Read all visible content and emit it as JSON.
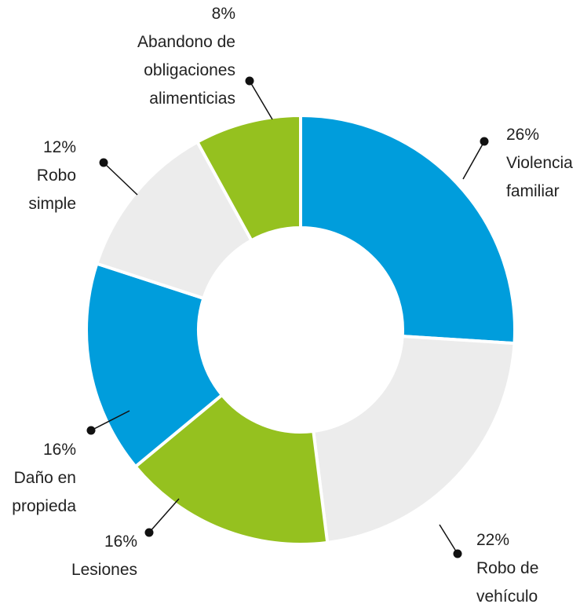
{
  "chart_data": {
    "type": "donut",
    "categories": [
      "Violencia\nfamiliar",
      "Robo de\nvehículo",
      "Lesiones",
      "Daño en\npropieda",
      "Robo\nsimple",
      "Abandono de\nobligaciones\nalimenticias"
    ],
    "values": [
      26,
      22,
      16,
      16,
      12,
      8
    ],
    "value_labels": [
      "26%",
      "22%",
      "16%",
      "16%",
      "12%",
      "8%"
    ],
    "colors": [
      "#009ddc",
      "#ececec",
      "#95c11f",
      "#009ddc",
      "#ececec",
      "#95c11f"
    ]
  }
}
